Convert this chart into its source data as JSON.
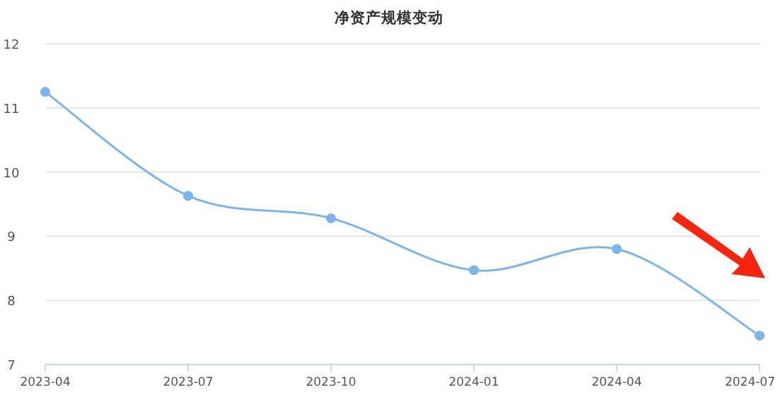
{
  "chart_data": {
    "type": "line",
    "title": "净资产规模变动",
    "categories": [
      "2023-04",
      "2023-07",
      "2023-10",
      "2024-01",
      "2024-04",
      "2024-07"
    ],
    "series": [
      {
        "color": "#7cb5ec",
        "values": [
          11.25,
          9.63,
          9.28,
          8.47,
          8.8,
          7.45
        ]
      }
    ],
    "ylim": [
      7,
      12
    ],
    "yticks": [
      7,
      8,
      9,
      10,
      11,
      12
    ],
    "grid": "y",
    "marker": "circle"
  }
}
